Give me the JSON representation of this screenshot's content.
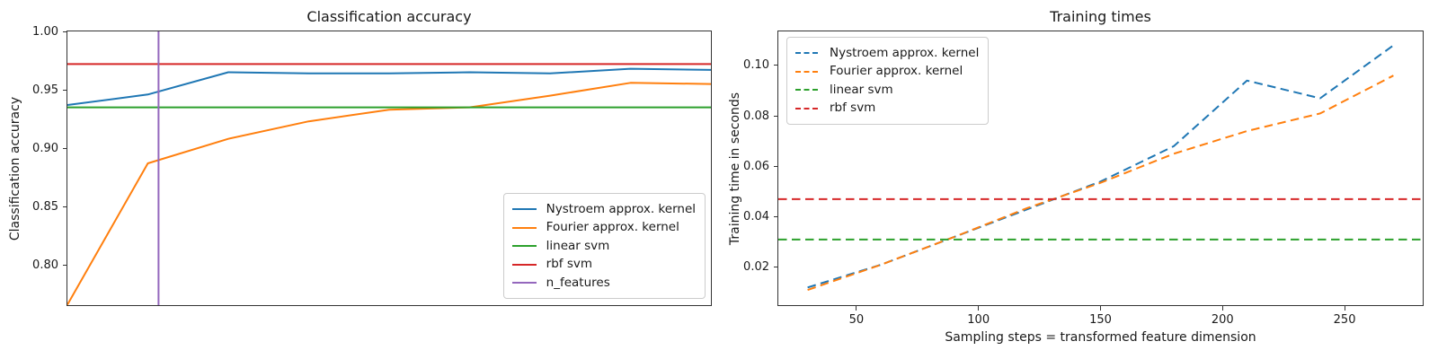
{
  "figure": {
    "background": "#ffffff"
  },
  "colors": {
    "blue": "#1f77b4",
    "orange": "#ff7f0e",
    "green": "#2ca02c",
    "red": "#d62728",
    "purple": "#9467bd",
    "spine": "#333333",
    "legend_border": "#cccccc"
  },
  "chart_data": [
    {
      "id": "accuracy",
      "type": "line",
      "title": "Classification accuracy",
      "xlabel": "",
      "ylabel": "Classification accuracy",
      "xlim": [
        30,
        270
      ],
      "ylim": [
        0.7656,
        1.0
      ],
      "grid": false,
      "legend_position": "lower-right",
      "x": [
        30,
        60,
        90,
        120,
        150,
        180,
        210,
        240,
        270
      ],
      "xtick_values": [],
      "xtick_labels": [],
      "ytick_values": [
        0.8,
        0.85,
        0.9,
        0.95,
        1.0
      ],
      "ytick_labels": [
        "0.80",
        "0.85",
        "0.90",
        "0.95",
        "1.00"
      ],
      "series": [
        {
          "name": "Nystroem approx. kernel",
          "color": "#1f77b4",
          "linestyle": "solid",
          "kind": "line",
          "values": [
            0.937,
            0.946,
            0.965,
            0.964,
            0.964,
            0.965,
            0.964,
            0.968,
            0.967
          ]
        },
        {
          "name": "Fourier approx. kernel",
          "color": "#ff7f0e",
          "linestyle": "solid",
          "kind": "line",
          "values": [
            0.766,
            0.887,
            0.908,
            0.923,
            0.933,
            0.935,
            0.945,
            0.956,
            0.955
          ]
        },
        {
          "name": "linear svm",
          "color": "#2ca02c",
          "linestyle": "solid",
          "kind": "hline",
          "value": 0.935
        },
        {
          "name": "rbf svm",
          "color": "#d62728",
          "linestyle": "solid",
          "kind": "hline",
          "value": 0.972
        },
        {
          "name": "n_features",
          "color": "#9467bd",
          "linestyle": "solid",
          "kind": "vline",
          "value": 64
        }
      ]
    },
    {
      "id": "times",
      "type": "line",
      "title": "Training times",
      "xlabel": "Sampling steps = transformed feature dimension",
      "ylabel": "Training time in seconds",
      "xlim": [
        18,
        282
      ],
      "ylim": [
        0.005,
        0.1135
      ],
      "grid": false,
      "legend_position": "upper-left",
      "x": [
        30,
        60,
        90,
        120,
        150,
        180,
        210,
        240,
        270
      ],
      "xtick_values": [
        50,
        100,
        150,
        200,
        250
      ],
      "xtick_labels": [
        "50",
        "100",
        "150",
        "200",
        "250"
      ],
      "ytick_values": [
        0.02,
        0.04,
        0.06,
        0.08,
        0.1
      ],
      "ytick_labels": [
        "0.02",
        "0.04",
        "0.06",
        "0.08",
        "0.10"
      ],
      "series": [
        {
          "name": "Nystroem approx. kernel",
          "color": "#1f77b4",
          "linestyle": "dashed",
          "kind": "line",
          "values": [
            0.012,
            0.021,
            0.032,
            0.043,
            0.054,
            0.068,
            0.094,
            0.087,
            0.108
          ]
        },
        {
          "name": "Fourier approx. kernel",
          "color": "#ff7f0e",
          "linestyle": "dashed",
          "kind": "line",
          "values": [
            0.011,
            0.021,
            0.032,
            0.0435,
            0.0535,
            0.065,
            0.074,
            0.081,
            0.096
          ]
        },
        {
          "name": "linear svm",
          "color": "#2ca02c",
          "linestyle": "dashed",
          "kind": "hline",
          "value": 0.031
        },
        {
          "name": "rbf svm",
          "color": "#d62728",
          "linestyle": "dashed",
          "kind": "hline",
          "value": 0.047
        }
      ]
    }
  ]
}
